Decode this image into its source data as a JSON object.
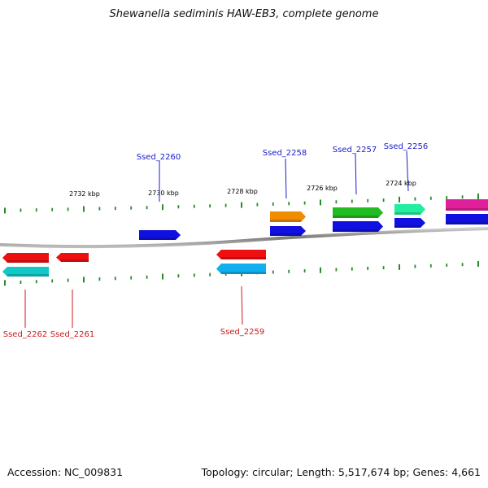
{
  "title": "Shewanella sediminis HAW-EB3, complete genome",
  "footer": {
    "accession": "Accession: NC_009831",
    "topology": "Topology: circular; Length: 5,517,674 bp; Genes: 4,661"
  },
  "colors": {
    "backbone": "#8a8a8a",
    "tick": "#2a8a2a",
    "label_top": "#1a1acc",
    "label_bottom": "#cc1a1a",
    "scale_text": "#111111"
  },
  "scale_ticks": [
    {
      "label": "2732 kbp"
    },
    {
      "label": "2730 kbp"
    },
    {
      "label": "2728 kbp"
    },
    {
      "label": "2726 kbp"
    },
    {
      "label": "2724 kbp"
    }
  ],
  "gene_labels": [
    {
      "label": "Ssed_2260",
      "side": "top"
    },
    {
      "label": "Ssed_2258",
      "side": "top"
    },
    {
      "label": "Ssed_2257",
      "side": "top"
    },
    {
      "label": "Ssed_2256",
      "side": "top"
    },
    {
      "label": "Ssed_2262",
      "side": "bottom"
    },
    {
      "label": "Ssed_2261",
      "side": "bottom"
    },
    {
      "label": "Ssed_2259",
      "side": "bottom"
    }
  ],
  "features": [
    {
      "name": "feature-blue-upper",
      "color": "#1010e0",
      "strand": "+"
    },
    {
      "name": "feature-orange",
      "color": "#f08c00",
      "strand": "+"
    },
    {
      "name": "feature-blue-2258",
      "color": "#1010e0",
      "strand": "+"
    },
    {
      "name": "feature-green",
      "color": "#22bb22",
      "strand": "+"
    },
    {
      "name": "feature-blue-2257",
      "color": "#1010e0",
      "strand": "+"
    },
    {
      "name": "feature-mint",
      "color": "#22eea0",
      "strand": "+"
    },
    {
      "name": "feature-blue-2256",
      "color": "#1010e0",
      "strand": "+"
    },
    {
      "name": "feature-magenta",
      "color": "#e0209a",
      "strand": "+"
    },
    {
      "name": "feature-blue-edge",
      "color": "#1010e0",
      "strand": "+"
    },
    {
      "name": "feature-red-2262",
      "color": "#ee1010",
      "strand": "-"
    },
    {
      "name": "feature-teal-2262",
      "color": "#10c8c8",
      "strand": "-"
    },
    {
      "name": "feature-red-2261",
      "color": "#ee1010",
      "strand": "-"
    },
    {
      "name": "feature-red-2259",
      "color": "#ee1010",
      "strand": "-"
    },
    {
      "name": "feature-cyan-2259",
      "color": "#10b0ee",
      "strand": "-"
    }
  ]
}
